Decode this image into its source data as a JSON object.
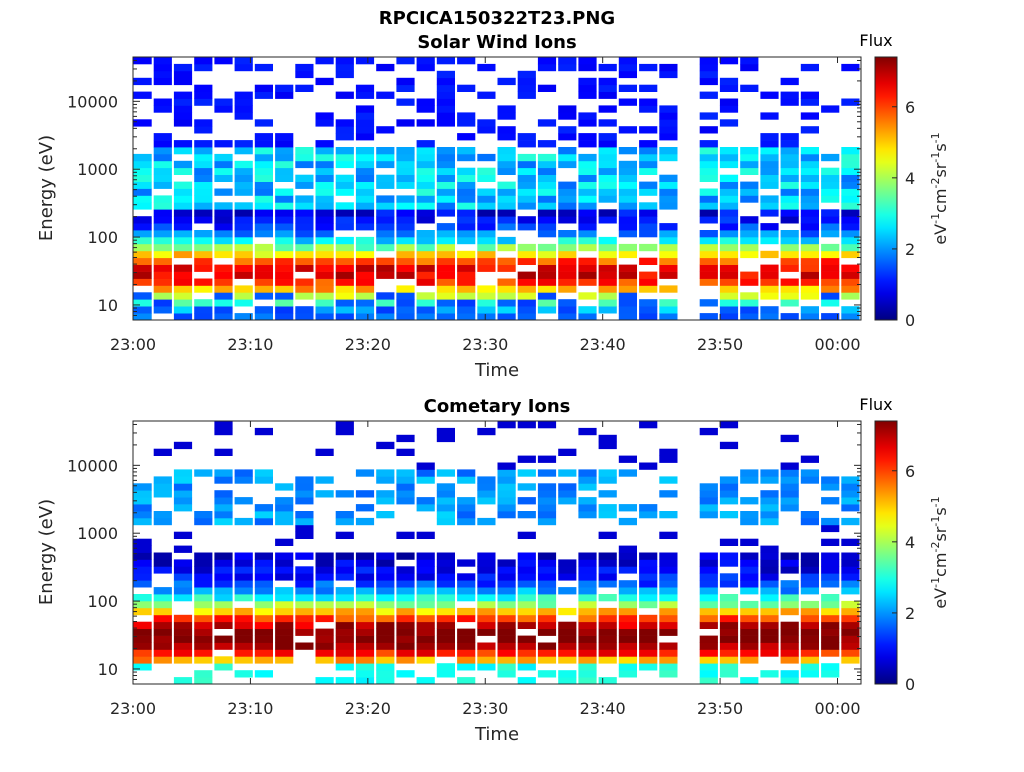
{
  "figure_title": "RPCICA150322T23.PNG",
  "chart_data": [
    {
      "type": "heatmap",
      "title": "Solar Wind Ions",
      "xlabel": "Time",
      "ylabel": "Energy (eV)",
      "x_ticks": [
        "23:00",
        "23:10",
        "23:20",
        "23:30",
        "23:40",
        "23:50",
        "00:00"
      ],
      "x_range_minutes": [
        0,
        62
      ],
      "y_scale": "log",
      "y_ticks": [
        "10",
        "100",
        "1000",
        "10000"
      ],
      "y_range": [
        6,
        45000
      ],
      "colorbar": {
        "label": "Flux",
        "unit_label": "eV-1cm-2sr-1s-1",
        "ticks": [
          "0",
          "2",
          "4",
          "6"
        ],
        "range": [
          0,
          7.4
        ],
        "colormap": "jet"
      },
      "data_gap_minutes": [
        45.5,
        49.2
      ],
      "peak_energy_ev": 30,
      "peak_flux": 6.0,
      "grid": false
    },
    {
      "type": "heatmap",
      "title": "Cometary Ions",
      "xlabel": "Time",
      "ylabel": "Energy (eV)",
      "x_ticks": [
        "23:00",
        "23:10",
        "23:20",
        "23:30",
        "23:40",
        "23:50",
        "00:00"
      ],
      "x_range_minutes": [
        0,
        62
      ],
      "y_scale": "log",
      "y_ticks": [
        "10",
        "100",
        "1000",
        "10000"
      ],
      "y_range": [
        6,
        45000
      ],
      "colorbar": {
        "label": "Flux",
        "unit_label": "eV-1cm-2sr-1s-1",
        "ticks": [
          "0",
          "2",
          "4",
          "6"
        ],
        "range": [
          0,
          7.4
        ],
        "colormap": "jet"
      },
      "data_gap_minutes": [
        45.5,
        49.2
      ],
      "peak_energy_ev": 30,
      "peak_flux": 7.0,
      "grid": false
    }
  ]
}
